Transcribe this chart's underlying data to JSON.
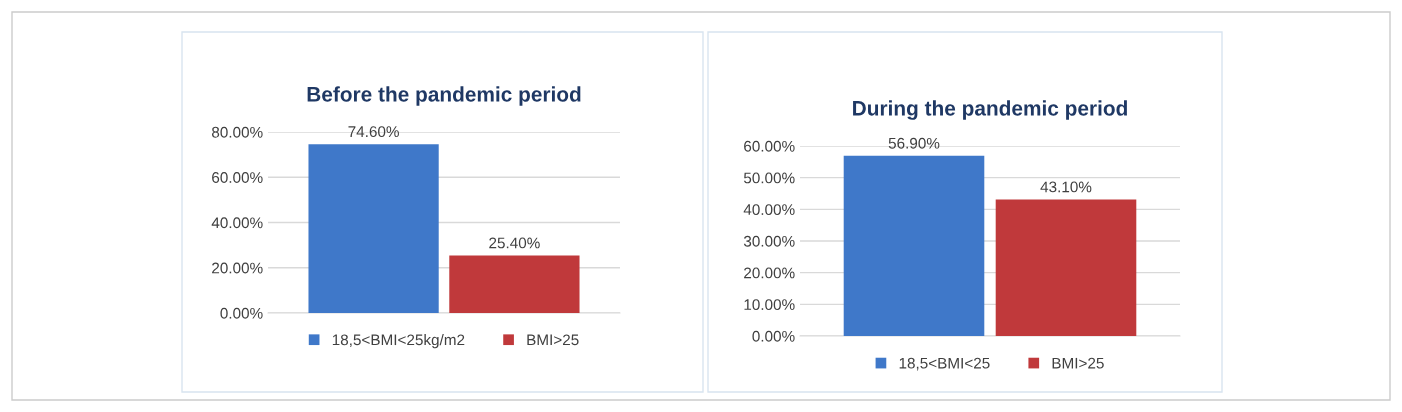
{
  "chart_data": [
    {
      "type": "bar",
      "title": "Before the pandemic period",
      "categories": [
        null
      ],
      "series": [
        {
          "name": "18,5<BMI<25kg/m2",
          "color": "#3f78c9",
          "values": [
            74.6
          ],
          "value_labels": [
            "74.60%"
          ]
        },
        {
          "name": "BMI>25",
          "color": "#c0393b",
          "values": [
            25.4
          ],
          "value_labels": [
            "25.40%"
          ]
        }
      ],
      "ylim": [
        0,
        80
      ],
      "yticks": [
        {
          "value": 0,
          "label": "0.00%"
        },
        {
          "value": 20,
          "label": "20.00%"
        },
        {
          "value": 40,
          "label": "40.00%"
        },
        {
          "value": 60,
          "label": "60.00%"
        },
        {
          "value": 80,
          "label": "80.00%"
        }
      ],
      "grid": "y",
      "legend": "bottom"
    },
    {
      "type": "bar",
      "title": "During the pandemic period",
      "categories": [
        null
      ],
      "series": [
        {
          "name": "18,5<BMI<25",
          "color": "#3f78c9",
          "values": [
            56.9
          ],
          "value_labels": [
            "56.90%"
          ]
        },
        {
          "name": "BMI>25",
          "color": "#c0393b",
          "values": [
            43.1
          ],
          "value_labels": [
            "43.10%"
          ]
        }
      ],
      "ylim": [
        0,
        60
      ],
      "yticks": [
        {
          "value": 0,
          "label": "0.00%"
        },
        {
          "value": 10,
          "label": "10.00%"
        },
        {
          "value": 20,
          "label": "20.00%"
        },
        {
          "value": 30,
          "label": "30.00%"
        },
        {
          "value": 40,
          "label": "40.00%"
        },
        {
          "value": 50,
          "label": "50.00%"
        },
        {
          "value": 60,
          "label": "60.00%"
        }
      ],
      "grid": "y",
      "legend": "bottom"
    }
  ]
}
